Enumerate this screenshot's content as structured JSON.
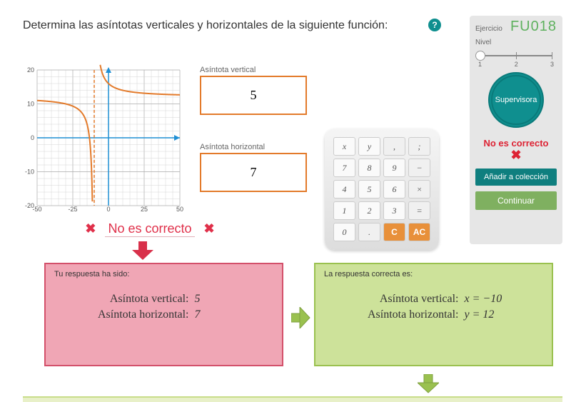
{
  "title": "Determina las asíntotas verticales y horizontales de la siguiente función:",
  "help": "?",
  "panel": {
    "ex_label": "Ejercicio",
    "ex_code": "FU018",
    "nivel": "Nivel",
    "levels": [
      "1",
      "2",
      "3"
    ],
    "badge": "Supervisora",
    "msg": "No es correcto",
    "x": "✖",
    "add": "Añadir a colección",
    "cont": "Continuar"
  },
  "vbox": {
    "label": "Asíntota vertical",
    "value": "5"
  },
  "hbox": {
    "label": "Asíntota horizontal",
    "value": "7"
  },
  "feedback": {
    "x": "✖",
    "text": "No es correcto"
  },
  "user_resp": {
    "title": "Tu respuesta ha sido:",
    "r1l": "Asíntota vertical:",
    "r1v": "5",
    "r2l": "Asíntota horizontal:",
    "r2v": "7"
  },
  "correct_resp": {
    "title": "La respuesta correcta es:",
    "r1l": "Asíntota vertical:",
    "r1v": "x = −10",
    "r2l": "Asíntota horizontal:",
    "r2v": "y = 12"
  },
  "calc_keys": [
    "x",
    "y",
    ",",
    ";",
    "7",
    "8",
    "9",
    "−",
    "4",
    "5",
    "6",
    "×",
    "1",
    "2",
    "3",
    "=",
    "0",
    ".",
    "C",
    "AC"
  ],
  "graph": {
    "x_ticks": [
      -50,
      -25,
      0,
      25,
      50
    ],
    "y_ticks": [
      -20,
      -10,
      0,
      10,
      20
    ],
    "asym_x": -10,
    "asym_y": 12,
    "axis_color": "#1f8fd4",
    "grid_color": "#cccccc",
    "curve_color": "#e37a2a",
    "asym_color": "#e37a2a"
  },
  "colors": {
    "orange": "#e37a2a",
    "red": "#e0304a",
    "teal": "#0f8f8f",
    "green": "#9ac14f",
    "pink": "#f0a6b5",
    "lime": "#cde29a"
  }
}
